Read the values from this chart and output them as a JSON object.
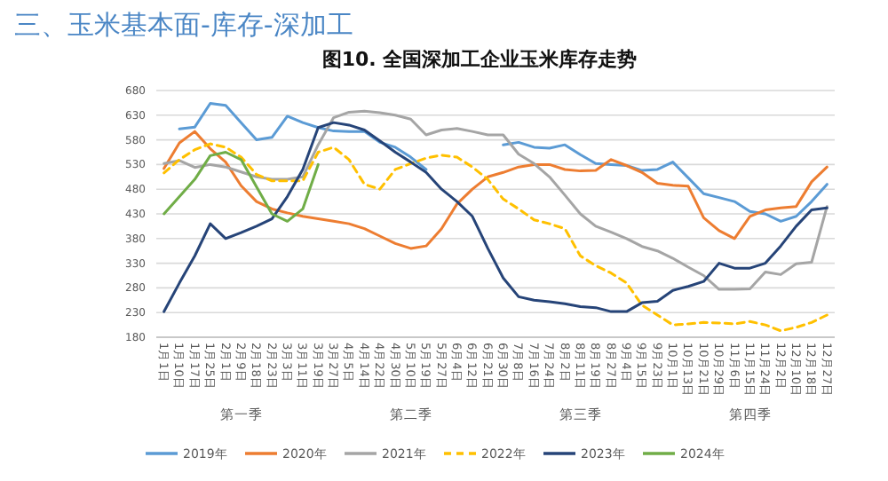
{
  "chart_data": {
    "type": "line",
    "title": "三、玉米基本面-库存-深加工",
    "subtitle": "图10. 全国深加工企业玉米库存走势",
    "categories": [
      "1月1日",
      "1月10日",
      "1月17日",
      "1月25日",
      "2月1日",
      "2月9日",
      "2月18日",
      "2月23日",
      "3月3日",
      "3月11日",
      "3月19日",
      "3月27日",
      "4月5日",
      "4月14日",
      "4月22日",
      "4月30日",
      "5月10日",
      "5月19日",
      "5月27日",
      "6月4日",
      "6月12日",
      "6月21日",
      "6月30日",
      "7月8日",
      "7月16日",
      "7月24日",
      "8月2日",
      "8月11日",
      "8月19日",
      "8月27日",
      "9月4日",
      "9月15日",
      "9月23日",
      "10月1日",
      "10月13日",
      "10月21日",
      "10月29日",
      "11月6日",
      "11月15日",
      "11月24日",
      "12月2日",
      "12月10日",
      "12月18日",
      "12月27日"
    ],
    "series": [
      {
        "name": "2019年",
        "color": "#5b9bd5",
        "values": [
          null,
          602,
          606,
          654,
          650,
          615,
          580,
          585,
          628,
          615,
          605,
          598,
          597,
          597,
          575,
          565,
          545,
          520,
          null,
          null,
          null,
          null,
          570,
          575,
          565,
          563,
          570,
          550,
          532,
          530,
          528,
          518,
          520,
          535,
          503,
          471,
          463,
          455,
          435,
          430,
          415,
          425,
          455,
          490
        ]
      },
      {
        "name": "2020年",
        "color": "#ed7d31",
        "values": [
          522,
          574,
          597,
          562,
          535,
          487,
          455,
          440,
          432,
          425,
          420,
          415,
          410,
          400,
          385,
          370,
          360,
          365,
          400,
          450,
          480,
          505,
          514,
          525,
          530,
          530,
          520,
          517,
          518,
          540,
          528,
          514,
          492,
          488,
          486,
          422,
          396,
          380,
          425,
          438,
          442,
          445,
          495,
          525
        ]
      },
      {
        "name": "2021年",
        "color": "#a5a5a5",
        "values": [
          532,
          538,
          524,
          530,
          525,
          515,
          505,
          500,
          500,
          505,
          570,
          625,
          636,
          638,
          635,
          630,
          622,
          590,
          600,
          603,
          597,
          590,
          590,
          551,
          532,
          505,
          468,
          430,
          405,
          393,
          380,
          364,
          355,
          340,
          322,
          305,
          277,
          277,
          278,
          312,
          307,
          329,
          332,
          445
        ]
      },
      {
        "name": "2022年",
        "color": "#ffc000",
        "line_style": "dashed",
        "values": [
          513,
          540,
          560,
          572,
          565,
          545,
          510,
          497,
          497,
          497,
          555,
          565,
          540,
          490,
          480,
          520,
          532,
          543,
          549,
          545,
          525,
          500,
          460,
          440,
          418,
          410,
          400,
          345,
          325,
          310,
          290,
          245,
          225,
          205,
          207,
          210,
          209,
          207,
          212,
          205,
          193,
          200,
          210,
          225
        ]
      },
      {
        "name": "2023年",
        "color": "#264478",
        "values": [
          232,
          290,
          345,
          410,
          380,
          392,
          405,
          420,
          465,
          520,
          605,
          615,
          610,
          600,
          578,
          555,
          535,
          514,
          480,
          455,
          425,
          360,
          300,
          262,
          255,
          252,
          248,
          242,
          240,
          232,
          232,
          250,
          253,
          275,
          283,
          293,
          330,
          320,
          320,
          330,
          365,
          405,
          438,
          442
        ]
      },
      {
        "name": "2024年",
        "color": "#70ad47",
        "values": [
          430,
          465,
          500,
          548,
          555,
          540,
          485,
          430,
          415,
          440,
          530,
          null,
          null,
          null,
          null,
          null,
          null,
          null,
          null,
          null,
          null,
          null,
          null,
          null,
          null,
          null,
          null,
          null,
          null,
          null,
          null,
          null,
          null,
          null,
          null,
          null,
          null,
          null,
          null,
          null,
          null,
          null,
          null,
          null
        ]
      }
    ],
    "ylim": [
      180,
      680
    ],
    "yticks": [
      180,
      230,
      280,
      330,
      380,
      430,
      480,
      530,
      580,
      630,
      680
    ],
    "grid": "y",
    "legend": "bottom",
    "annotations": [
      "第一季",
      "第二季",
      "第三季",
      "第四季"
    ]
  }
}
